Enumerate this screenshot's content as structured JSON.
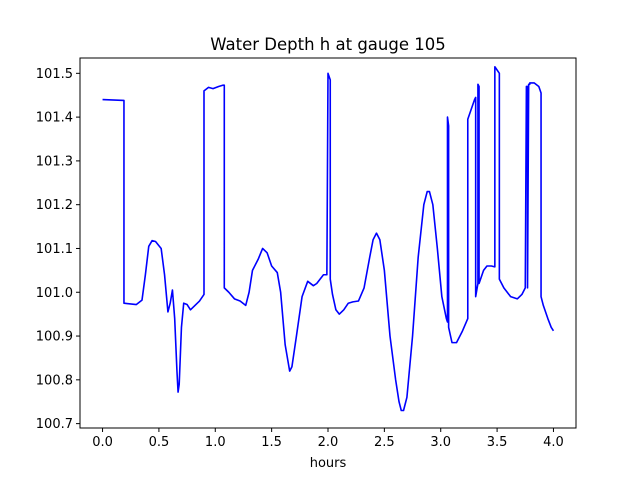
{
  "chart_data": {
    "type": "line",
    "title": "Water Depth h at gauge 105",
    "xlabel": "hours",
    "ylabel": "",
    "xlim": [
      -0.2,
      4.2
    ],
    "ylim": [
      100.69,
      101.535
    ],
    "xticks": [
      "0.0",
      "0.5",
      "1.0",
      "1.5",
      "2.0",
      "2.5",
      "3.0",
      "3.5",
      "4.0"
    ],
    "yticks": [
      "100.7",
      "100.8",
      "100.9",
      "101.0",
      "101.1",
      "101.2",
      "101.3",
      "101.4",
      "101.5"
    ],
    "grid": false,
    "legend": "none",
    "series_color": "#0000ff",
    "series": [
      {
        "x": [
          0.0,
          0.19,
          0.19,
          0.3,
          0.35,
          0.38,
          0.41,
          0.44,
          0.47,
          0.52,
          0.55,
          0.58,
          0.6,
          0.62,
          0.64,
          0.66,
          0.67,
          0.68,
          0.7,
          0.72,
          0.75,
          0.78,
          0.82,
          0.86,
          0.9,
          0.9,
          0.94,
          0.98,
          1.03,
          1.07,
          1.08,
          1.08,
          1.12,
          1.17,
          1.22,
          1.27,
          1.3,
          1.33,
          1.38,
          1.42,
          1.46,
          1.5,
          1.55,
          1.58,
          1.62,
          1.66,
          1.68,
          1.72,
          1.77,
          1.82,
          1.87,
          1.9,
          1.93,
          1.96,
          1.99,
          2.0,
          2.0,
          2.02,
          2.02,
          2.04,
          2.07,
          2.1,
          2.14,
          2.18,
          2.22,
          2.27,
          2.32,
          2.37,
          2.4,
          2.43,
          2.46,
          2.5,
          2.55,
          2.6,
          2.63,
          2.65,
          2.67,
          2.7,
          2.75,
          2.8,
          2.85,
          2.88,
          2.9,
          2.93,
          2.97,
          3.01,
          3.05,
          3.06,
          3.06,
          3.07,
          3.07,
          3.1,
          3.14,
          3.19,
          3.24,
          3.24,
          3.3,
          3.31,
          3.31,
          3.33,
          3.33,
          3.34,
          3.34,
          3.38,
          3.41,
          3.45,
          3.48,
          3.48,
          3.52,
          3.52,
          3.56,
          3.62,
          3.68,
          3.72,
          3.75,
          3.76,
          3.77,
          3.77,
          3.78,
          3.78,
          3.79,
          3.79,
          3.83,
          3.87,
          3.89,
          3.89,
          3.91,
          3.95,
          3.98,
          4.0
        ],
        "y": [
          101.44,
          101.438,
          100.975,
          100.972,
          100.982,
          101.04,
          101.105,
          101.118,
          101.116,
          101.1,
          101.04,
          100.955,
          100.975,
          101.005,
          100.94,
          100.82,
          100.772,
          100.79,
          100.92,
          100.975,
          100.972,
          100.96,
          100.97,
          100.98,
          100.995,
          101.46,
          101.468,
          101.465,
          101.47,
          101.473,
          101.473,
          101.01,
          101.0,
          100.985,
          100.98,
          100.97,
          101.0,
          101.05,
          101.075,
          101.1,
          101.09,
          101.06,
          101.045,
          101.0,
          100.88,
          100.82,
          100.83,
          100.9,
          100.99,
          101.025,
          101.015,
          101.02,
          101.03,
          101.04,
          101.04,
          101.5,
          101.5,
          101.485,
          101.03,
          100.995,
          100.96,
          100.95,
          100.96,
          100.975,
          100.978,
          100.98,
          101.01,
          101.08,
          101.12,
          101.135,
          101.12,
          101.05,
          100.9,
          100.8,
          100.75,
          100.73,
          100.73,
          100.76,
          100.9,
          101.08,
          101.2,
          101.23,
          101.23,
          101.2,
          101.1,
          100.99,
          100.94,
          100.932,
          101.4,
          101.38,
          100.92,
          100.885,
          100.885,
          100.91,
          100.94,
          101.395,
          101.44,
          101.445,
          100.99,
          101.02,
          101.475,
          101.47,
          101.02,
          101.05,
          101.06,
          101.06,
          101.058,
          101.515,
          101.5,
          101.03,
          101.01,
          100.99,
          100.985,
          100.995,
          101.01,
          101.47,
          101.47,
          101.01,
          101.47,
          101.475,
          101.475,
          101.478,
          101.478,
          101.47,
          101.455,
          100.99,
          100.97,
          100.94,
          100.92,
          100.912
        ]
      }
    ]
  }
}
